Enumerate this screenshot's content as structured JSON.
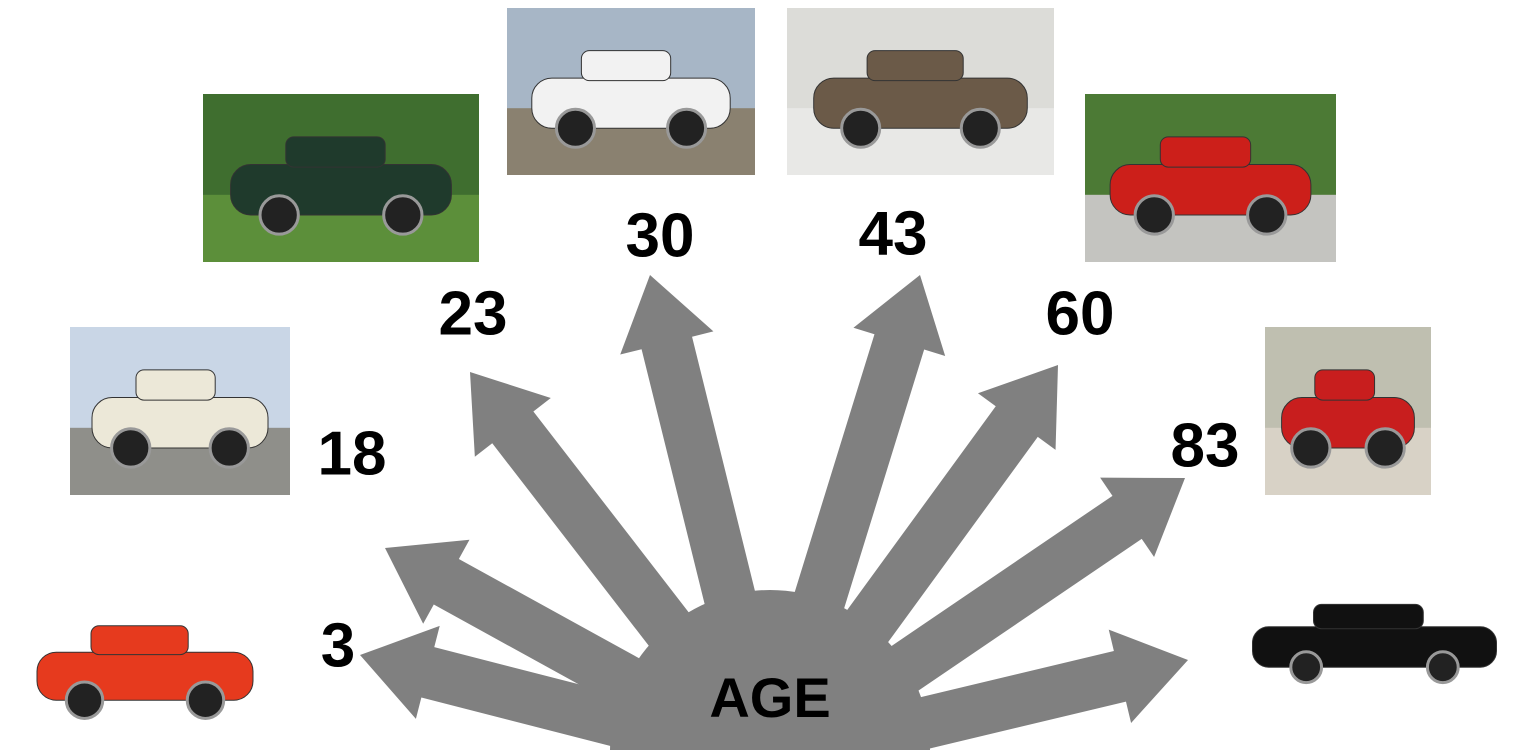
{
  "center": {
    "label": "AGE"
  },
  "stages": [
    {
      "label": "3"
    },
    {
      "label": "18"
    },
    {
      "label": "23"
    },
    {
      "label": "30"
    },
    {
      "label": "43"
    },
    {
      "label": "60"
    },
    {
      "label": "83"
    }
  ]
}
